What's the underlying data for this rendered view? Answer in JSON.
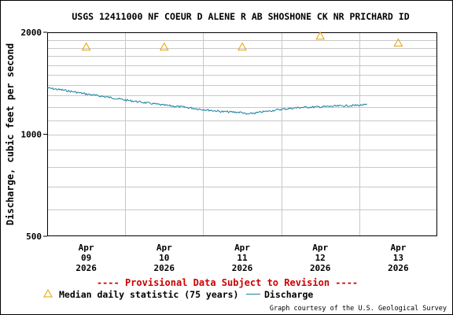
{
  "chart_data": {
    "type": "line",
    "title": "USGS 12411000 NF COEUR D ALENE R AB SHOSHONE CK NR PRICHARD ID",
    "ylabel": "Discharge, cubic feet per second",
    "yscale": "log",
    "ylim": [
      500,
      2000
    ],
    "ytick_labels": [
      "2000",
      "1000",
      "500"
    ],
    "ytick_values": [
      2000,
      1000,
      500
    ],
    "grid": true,
    "x_domain_days": [
      0,
      5
    ],
    "x_ticks": [
      {
        "day": 0.5,
        "lines": [
          "Apr",
          "09",
          "2026"
        ]
      },
      {
        "day": 1.5,
        "lines": [
          "Apr",
          "10",
          "2026"
        ]
      },
      {
        "day": 2.5,
        "lines": [
          "Apr",
          "11",
          "2026"
        ]
      },
      {
        "day": 3.5,
        "lines": [
          "Apr",
          "12",
          "2026"
        ]
      },
      {
        "day": 4.5,
        "lines": [
          "Apr",
          "13",
          "2026"
        ]
      }
    ],
    "series": [
      {
        "name": "Discharge",
        "color": "#1a7fa0",
        "style": "line",
        "points": [
          [
            0.0,
            1370
          ],
          [
            0.25,
            1345
          ],
          [
            0.5,
            1315
          ],
          [
            0.75,
            1290
          ],
          [
            1.0,
            1262
          ],
          [
            1.25,
            1240
          ],
          [
            1.5,
            1218
          ],
          [
            1.75,
            1203
          ],
          [
            2.0,
            1183
          ],
          [
            2.25,
            1166
          ],
          [
            2.5,
            1160
          ],
          [
            2.55,
            1145
          ],
          [
            2.75,
            1163
          ],
          [
            3.0,
            1185
          ],
          [
            3.25,
            1200
          ],
          [
            3.5,
            1205
          ],
          [
            3.75,
            1212
          ],
          [
            4.0,
            1218
          ],
          [
            4.1,
            1222
          ]
        ]
      },
      {
        "name": "Median daily statistic (75 years)",
        "color": "#e8a000",
        "style": "triangle",
        "points": [
          [
            0.5,
            1810
          ],
          [
            1.5,
            1810
          ],
          [
            2.5,
            1810
          ],
          [
            3.5,
            1950
          ],
          [
            4.5,
            1860
          ]
        ]
      }
    ],
    "provisional_note": "---- Provisional Data Subject to Revision ----",
    "legend": [
      {
        "label": "Median daily statistic (75 years)",
        "symbol": "triangle",
        "color": "#e8a000"
      },
      {
        "label": "Discharge",
        "symbol": "line",
        "color": "#1a7fa0"
      }
    ],
    "legend_position": "bottom",
    "credit": "Graph courtesy of the U.S. Geological Survey"
  }
}
